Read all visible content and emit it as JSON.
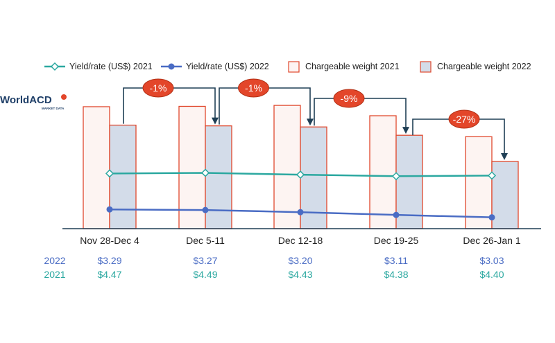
{
  "logo": {
    "name": "WorldACD",
    "tagline": "MARKET DATA"
  },
  "colors": {
    "yield_2021": "#2ba8a0",
    "yield_2022": "#4a6cc4",
    "weight_2021_fill": "#fdf4f2",
    "weight_2022_fill": "#d3dce9",
    "bar_border": "#e0472c",
    "arrow": "#1f3f55",
    "badge": "#e3462a",
    "axis": "#1f3f55"
  },
  "legend": [
    {
      "label": "Yield/rate (US$) 2021",
      "kind": "line-open",
      "color": "#2ba8a0"
    },
    {
      "label": "Yield/rate (US$) 2022",
      "kind": "line-filled",
      "color": "#4a6cc4"
    },
    {
      "label": "Chargeable weight 2021",
      "kind": "box",
      "color": "#fdf4f2"
    },
    {
      "label": "Chargeable weight 2022",
      "kind": "box",
      "color": "#d3dce9"
    }
  ],
  "chart_data": {
    "type": "bar",
    "categories": [
      "Nov 28-Dec 4",
      "Dec 5-11",
      "Dec 12-18",
      "Dec 19-25",
      "Dec 26-Jan 1"
    ],
    "series": [
      {
        "name": "Chargeable weight 2021",
        "kind": "bar",
        "values": [
          100,
          100.3,
          101.1,
          92.6,
          75.4
        ]
      },
      {
        "name": "Chargeable weight 2022",
        "kind": "bar",
        "values": [
          84.9,
          84.3,
          83.4,
          76.6,
          55.1
        ]
      },
      {
        "name": "Yield/rate (US$) 2021",
        "kind": "line",
        "values": [
          4.47,
          4.49,
          4.43,
          4.38,
          4.4
        ]
      },
      {
        "name": "Yield/rate (US$) 2022",
        "kind": "line",
        "values": [
          3.29,
          3.27,
          3.2,
          3.11,
          3.03
        ]
      }
    ],
    "annotations": [
      "-1%",
      "-1%",
      "-9%",
      "-27%"
    ],
    "value_table": [
      {
        "year": "2022",
        "values": [
          "$3.29",
          "$3.27",
          "$3.20",
          "$3.11",
          "$3.03"
        ]
      },
      {
        "year": "2021",
        "values": [
          "$4.47",
          "$4.49",
          "$4.43",
          "$4.38",
          "$4.40"
        ]
      }
    ],
    "ylim_weight": [
      0,
      100
    ],
    "ylim_yield": [
      0,
      5.5
    ],
    "grid": false,
    "legend_position": "top"
  }
}
